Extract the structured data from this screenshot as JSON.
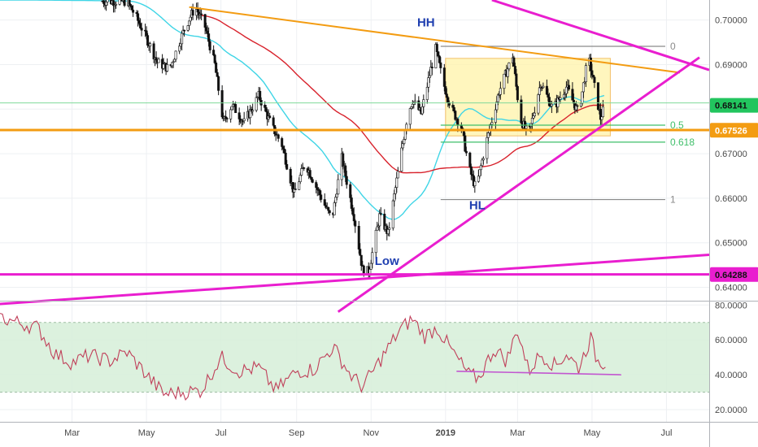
{
  "chart_data": {
    "type": "candlestick",
    "price_axis": {
      "ticks": [
        "0.70000",
        "0.69000",
        "0.68000",
        "0.67000",
        "0.66000",
        "0.65000",
        "0.64000"
      ],
      "range": [
        0.637,
        0.7045
      ]
    },
    "rsi_axis": {
      "ticks": [
        "80.0000",
        "60.0000",
        "40.0000",
        "20.0000"
      ],
      "range": [
        13,
        82
      ],
      "band": [
        30,
        70
      ]
    },
    "time_axis": {
      "labels": [
        "Mar",
        "May",
        "Jul",
        "Sep",
        "Nov",
        "2019",
        "Mar",
        "May",
        "Jul"
      ],
      "range": [
        "2018-01-01",
        "2019-08-05"
      ]
    },
    "price_badges": [
      {
        "value": "0.68141",
        "color": "#22c55e"
      },
      {
        "value": "0.67526",
        "color": "#f39c12"
      },
      {
        "value": "0.64288",
        "color": "#e91ecf"
      }
    ],
    "annotations": [
      "HH",
      "HL",
      "Low"
    ],
    "fib_levels": [
      {
        "label": "0",
        "price": 0.6941
      },
      {
        "label": "0.5",
        "price": 0.6764
      },
      {
        "label": "0.618",
        "price": 0.6726
      },
      {
        "label": "1",
        "price": 0.6597
      }
    ],
    "moving_averages": [
      {
        "name": "cyan",
        "color": "#3fd5e6"
      },
      {
        "name": "red",
        "color": "#d8222c"
      }
    ],
    "horizontal_levels": [
      {
        "price": 0.6753,
        "color": "#f39c12"
      },
      {
        "price": 0.6429,
        "color": "#e91ecf"
      },
      {
        "price": 0.6814,
        "color": "#7fd99a"
      }
    ],
    "price_path": [
      [
        "2018-01-01",
        0.7045
      ],
      [
        "2018-04-15",
        0.7042
      ],
      [
        "2018-04-22",
        0.701
      ],
      [
        "2018-05-01",
        0.696
      ],
      [
        "2018-05-10",
        0.6905
      ],
      [
        "2018-05-20",
        0.689
      ],
      [
        "2018-06-01",
        0.698
      ],
      [
        "2018-06-10",
        0.703
      ],
      [
        "2018-06-18",
        0.6985
      ],
      [
        "2018-06-26",
        0.69
      ],
      [
        "2018-07-03",
        0.677
      ],
      [
        "2018-07-10",
        0.681
      ],
      [
        "2018-07-20",
        0.677
      ],
      [
        "2018-08-01",
        0.683
      ],
      [
        "2018-08-12",
        0.676
      ],
      [
        "2018-08-20",
        0.672
      ],
      [
        "2018-08-30",
        0.661
      ],
      [
        "2018-09-08",
        0.668
      ],
      [
        "2018-09-18",
        0.662
      ],
      [
        "2018-09-30",
        0.655
      ],
      [
        "2018-10-08",
        0.669
      ],
      [
        "2018-10-18",
        0.656
      ],
      [
        "2018-10-25",
        0.644
      ],
      [
        "2018-10-30",
        0.6435
      ],
      [
        "2018-11-08",
        0.656
      ],
      [
        "2018-11-15",
        0.652
      ],
      [
        "2018-11-22",
        0.664
      ],
      [
        "2018-12-01",
        0.679
      ],
      [
        "2018-12-05",
        0.682
      ],
      [
        "2018-12-12",
        0.679
      ],
      [
        "2018-12-20",
        0.689
      ],
      [
        "2018-12-24",
        0.6935
      ],
      [
        "2018-12-30",
        0.686
      ],
      [
        "2019-01-06",
        0.68
      ],
      [
        "2019-01-14",
        0.676
      ],
      [
        "2019-01-20",
        0.667
      ],
      [
        "2019-01-26",
        0.662
      ],
      [
        "2019-02-02",
        0.671
      ],
      [
        "2019-02-14",
        0.684
      ],
      [
        "2019-02-25",
        0.692
      ],
      [
        "2019-03-03",
        0.678
      ],
      [
        "2019-03-10",
        0.674
      ],
      [
        "2019-03-20",
        0.686
      ],
      [
        "2019-03-30",
        0.68
      ],
      [
        "2019-04-10",
        0.685
      ],
      [
        "2019-04-20",
        0.679
      ],
      [
        "2019-04-28",
        0.692
      ],
      [
        "2019-05-03",
        0.685
      ],
      [
        "2019-05-08",
        0.678
      ],
      [
        "2019-05-12",
        0.6812
      ]
    ],
    "rsi_path": [
      [
        "2018-01-01",
        73
      ],
      [
        "2018-01-15",
        70
      ],
      [
        "2018-02-01",
        67
      ],
      [
        "2018-02-15",
        52
      ],
      [
        "2018-03-01",
        47
      ],
      [
        "2018-03-15",
        51
      ],
      [
        "2018-04-01",
        48
      ],
      [
        "2018-04-15",
        53
      ],
      [
        "2018-05-01",
        40
      ],
      [
        "2018-05-15",
        29
      ],
      [
        "2018-06-01",
        30
      ],
      [
        "2018-06-15",
        31
      ],
      [
        "2018-07-01",
        50
      ],
      [
        "2018-07-15",
        42
      ],
      [
        "2018-08-01",
        44
      ],
      [
        "2018-08-15",
        31
      ],
      [
        "2018-09-01",
        42
      ],
      [
        "2018-09-15",
        43
      ],
      [
        "2018-10-01",
        56
      ],
      [
        "2018-10-15",
        40
      ],
      [
        "2018-10-25",
        33
      ],
      [
        "2018-11-10",
        50
      ],
      [
        "2018-11-25",
        66
      ],
      [
        "2018-12-05",
        72
      ],
      [
        "2018-12-15",
        62
      ],
      [
        "2018-12-25",
        67
      ],
      [
        "2019-01-05",
        55
      ],
      [
        "2019-01-20",
        40
      ],
      [
        "2019-01-28",
        38
      ],
      [
        "2019-02-10",
        55
      ],
      [
        "2019-02-20",
        48
      ],
      [
        "2019-03-01",
        66
      ],
      [
        "2019-03-10",
        42
      ],
      [
        "2019-03-20",
        52
      ],
      [
        "2019-04-01",
        45
      ],
      [
        "2019-04-10",
        52
      ],
      [
        "2019-04-20",
        44
      ],
      [
        "2019-04-30",
        61
      ],
      [
        "2019-05-05",
        48
      ],
      [
        "2019-05-12",
        47
      ]
    ],
    "trendlines": [
      {
        "color": "#f39c12",
        "from": [
          "2018-06-05",
          0.7029
        ],
        "to": [
          "2019-07-12",
          0.6882
        ]
      },
      {
        "color": "#e91ecf",
        "from": [
          "2018-10-05",
          0.6345
        ],
        "to": [
          "2019-07-28",
          0.6916
        ]
      },
      {
        "color": "#e91ecf",
        "from": [
          "2017-12-28",
          0.6362
        ],
        "to": [
          "2019-08-05",
          0.6473
        ]
      },
      {
        "color": "#e91ecf",
        "from": [
          "2019-02-08",
          0.7045
        ],
        "to": [
          "2019-08-05",
          0.6888
        ]
      }
    ]
  }
}
